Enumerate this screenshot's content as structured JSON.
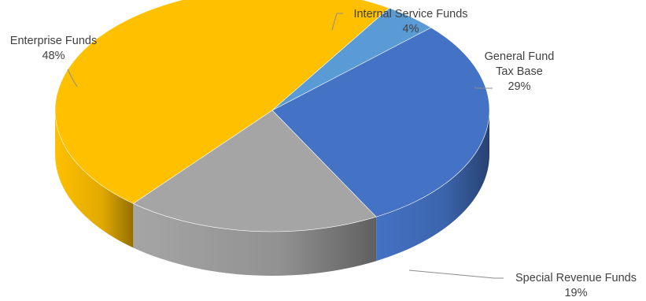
{
  "chart_data": {
    "type": "pie",
    "style": "3d",
    "title": "",
    "unit": "%",
    "slices": [
      {
        "name": "General Fund Tax Base",
        "label_lines": [
          "General Fund",
          "Tax Base"
        ],
        "value": 29,
        "value_label": "29%",
        "color": "#4472c4"
      },
      {
        "name": "Special Revenue Funds",
        "label_lines": [
          "Special Revenue Funds"
        ],
        "value": 19,
        "value_label": "19%",
        "color": "#a5a5a5"
      },
      {
        "name": "Enterprise Funds",
        "label_lines": [
          "Enterprise Funds"
        ],
        "value": 48,
        "value_label": "48%",
        "color": "#ffc000"
      },
      {
        "name": "Internal Service Funds",
        "label_lines": [
          "Internal Service Funds"
        ],
        "value": 4,
        "value_label": "4%",
        "color": "#5b9bd5"
      }
    ],
    "legend": "none",
    "data_labels": "outside-with-leader-lines"
  }
}
